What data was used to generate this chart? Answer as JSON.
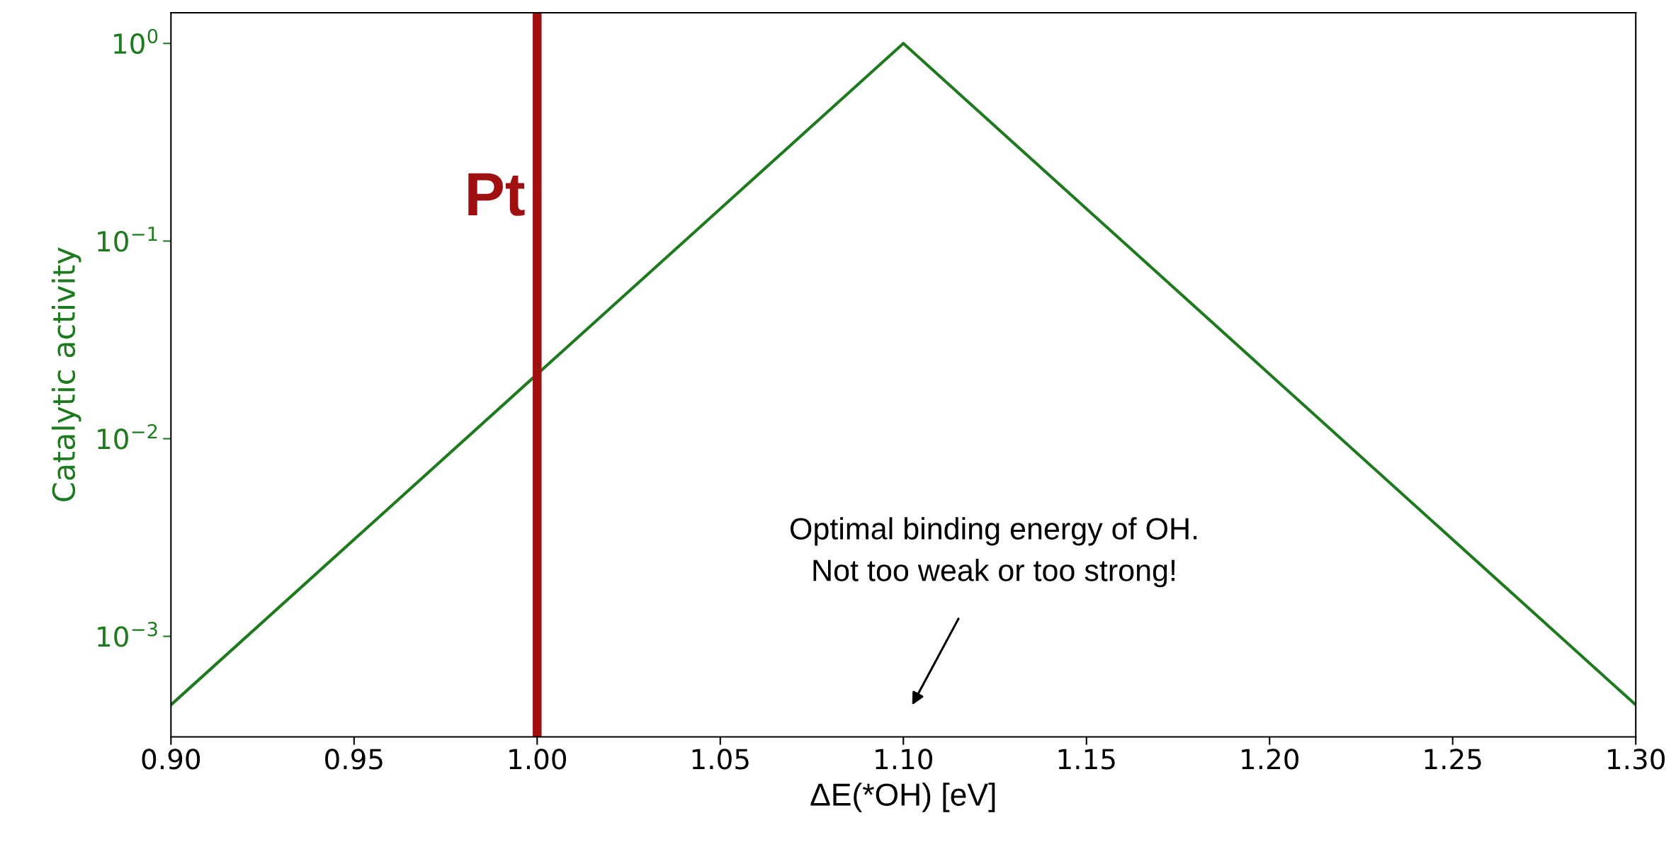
{
  "chart_data": {
    "type": "line",
    "xlabel": "ΔE(*OH) [eV]",
    "ylabel": "Catalytic activity",
    "log": "y",
    "series": [
      {
        "color": "#1f7a1f",
        "x": [
          0.9,
          1.1,
          1.3
        ],
        "values": [
          0.00045,
          1,
          0.00045
        ]
      }
    ],
    "xlim": [
      0.9,
      1.3
    ],
    "xticks": [
      {
        "value": 0.9,
        "label": "0.90"
      },
      {
        "value": 0.95,
        "label": "0.95"
      },
      {
        "value": 1.0,
        "label": "1.00"
      },
      {
        "value": 1.05,
        "label": "1.05"
      },
      {
        "value": 1.1,
        "label": "1.10"
      },
      {
        "value": 1.15,
        "label": "1.15"
      },
      {
        "value": 1.2,
        "label": "1.20"
      },
      {
        "value": 1.25,
        "label": "1.25"
      },
      {
        "value": 1.3,
        "label": "1.30"
      }
    ],
    "ylim": [
      0.00031,
      1.43
    ],
    "yticks": [
      {
        "value": 0.001,
        "label": "10$^{−3}$"
      },
      {
        "value": 0.01,
        "label": "10$^{−2}$"
      },
      {
        "value": 0.1,
        "label": "10$^{−1}$"
      },
      {
        "value": 1,
        "label": "10$^{0}$"
      }
    ],
    "ref_lines": [
      {
        "axis": "x",
        "value": 1.0,
        "label": "Pt",
        "color": "#a01010"
      }
    ],
    "annotations": [
      "Optimal binding energy of OH.\nNot too weak or too strong!"
    ],
    "grid": false,
    "legend": false,
    "marker": "none",
    "line_style": "solid"
  }
}
